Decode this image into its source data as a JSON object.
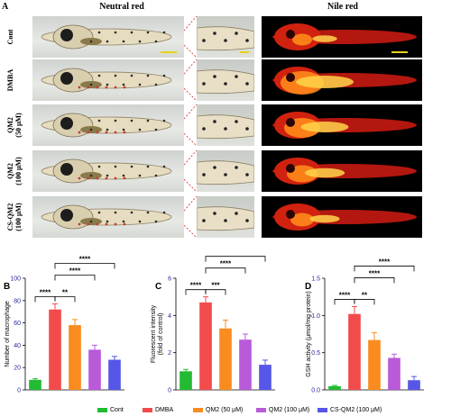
{
  "panel_a": {
    "letter": "A",
    "col_neutral": "Neutral red",
    "col_nile": "Nile red",
    "rows": [
      {
        "label": "Cont"
      },
      {
        "label": "DMBA"
      },
      {
        "label": "QM2\n(50 μM)"
      },
      {
        "label": "QM2\n(100 μM)"
      },
      {
        "label": "CS-QM2\n(100 μM)"
      }
    ]
  },
  "legend": [
    {
      "label": "Cont",
      "color": "#22bb33"
    },
    {
      "label": "DMBA",
      "color": "#f24b4b"
    },
    {
      "label": "QM2 (50 μM)",
      "color": "#f98c1f"
    },
    {
      "label": "QM2 (100 μM)",
      "color": "#b95ad9"
    },
    {
      "label": "CS-QM2 (100 μM)",
      "color": "#5656e8"
    }
  ],
  "chart_data": [
    {
      "letter": "B",
      "type": "bar",
      "categories": [
        "Cont",
        "DMBA",
        "QM2 (50 μM)",
        "QM2 (100 μM)",
        "CS-QM2 (100 μM)"
      ],
      "values": [
        9,
        72,
        58,
        36,
        27
      ],
      "errors": [
        1,
        5,
        5,
        4,
        3
      ],
      "ylabel": "Number of macrophage",
      "ylim": [
        0,
        100
      ],
      "yticks": [
        "0",
        "20",
        "40",
        "60",
        "80",
        "100"
      ],
      "significance": [
        {
          "from": 0,
          "to": 1,
          "label": "****"
        },
        {
          "from": 1,
          "to": 2,
          "label": "**"
        },
        {
          "from": 1,
          "to": 3,
          "label": "****"
        },
        {
          "from": 1,
          "to": 4,
          "label": "****"
        }
      ]
    },
    {
      "letter": "C",
      "type": "bar",
      "categories": [
        "Cont",
        "DMBA",
        "QM2 (50 μM)",
        "QM2 (100 μM)",
        "CS-QM2 (100 μM)"
      ],
      "values": [
        1.0,
        4.7,
        3.3,
        2.7,
        1.35
      ],
      "errors": [
        0.1,
        0.3,
        0.45,
        0.3,
        0.25
      ],
      "ylabel": "Fluorescent intensity\n(fold of control)",
      "ylim": [
        0,
        6
      ],
      "yticks": [
        "0",
        "2",
        "4",
        "6"
      ],
      "significance": [
        {
          "from": 0,
          "to": 1,
          "label": "****"
        },
        {
          "from": 1,
          "to": 2,
          "label": "***"
        },
        {
          "from": 1,
          "to": 3,
          "label": "****"
        },
        {
          "from": 1,
          "to": 4,
          "label": "****"
        }
      ]
    },
    {
      "letter": "D",
      "type": "bar",
      "categories": [
        "Cont",
        "DMBA",
        "QM2 (50 μM)",
        "QM2 (100 μM)",
        "CS-QM2 (100 μM)"
      ],
      "values": [
        0.05,
        1.02,
        0.67,
        0.43,
        0.13
      ],
      "errors": [
        0.01,
        0.1,
        0.1,
        0.05,
        0.05
      ],
      "ylabel": "GSH activity (μmol/mg protein)",
      "ylim": [
        0,
        1.5
      ],
      "yticks": [
        "0.0",
        "0.5",
        "1.0",
        "1.5"
      ],
      "significance": [
        {
          "from": 0,
          "to": 1,
          "label": "****"
        },
        {
          "from": 1,
          "to": 2,
          "label": "**"
        },
        {
          "from": 1,
          "to": 3,
          "label": "****"
        },
        {
          "from": 1,
          "to": 4,
          "label": "****"
        }
      ]
    }
  ]
}
